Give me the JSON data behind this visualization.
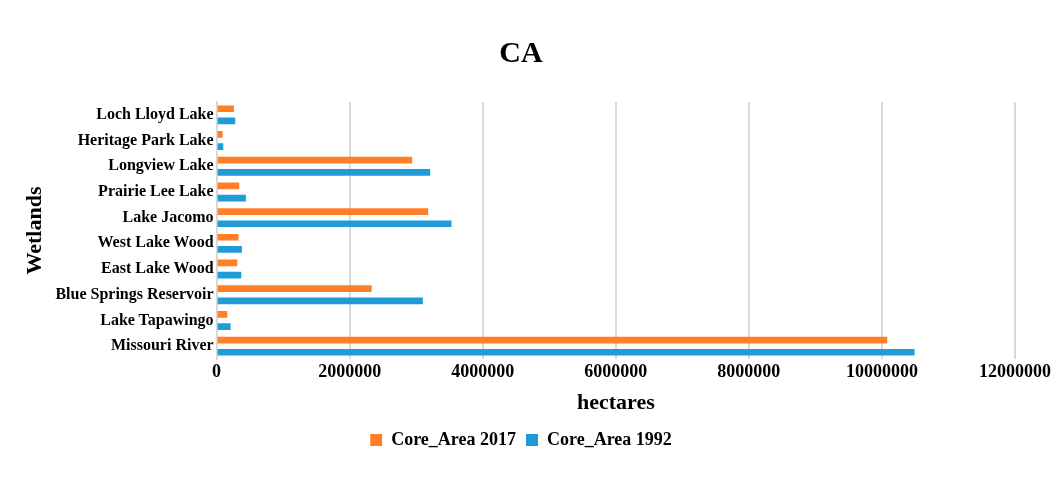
{
  "chart_data": {
    "type": "bar",
    "orientation": "horizontal",
    "title": "CA",
    "xlabel": "hectares",
    "ylabel": "Wetlands",
    "categories": [
      "Loch Lloyd Lake",
      "Heritage Park Lake",
      "Longview Lake",
      "Prairie Lee Lake",
      "Lake Jacomo",
      "West Lake Wood",
      "East Lake Wood",
      "Blue Springs Reservoir",
      "Lake Tapawingo",
      "Missouri River"
    ],
    "series": [
      {
        "name": "Core_Area 2017",
        "color": "#ff7f27",
        "values": [
          260000,
          90000,
          2940000,
          340000,
          3180000,
          330000,
          310000,
          2330000,
          160000,
          10080000
        ]
      },
      {
        "name": "Core_Area 1992",
        "color": "#1f9bd7",
        "values": [
          280000,
          100000,
          3210000,
          440000,
          3530000,
          380000,
          370000,
          3100000,
          210000,
          10490000
        ]
      }
    ],
    "xlim": [
      0,
      12000000
    ],
    "xticks": [
      0,
      2000000,
      4000000,
      6000000,
      8000000,
      10000000,
      12000000
    ],
    "grid": "x",
    "legend": "bottom"
  }
}
